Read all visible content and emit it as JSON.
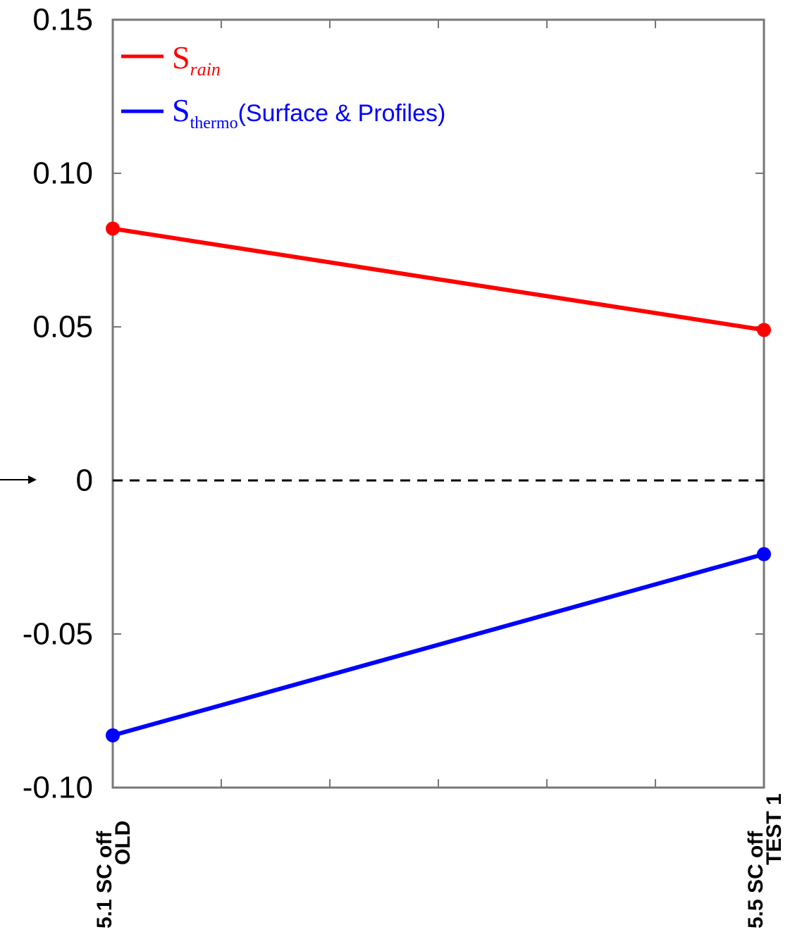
{
  "chart_data": {
    "type": "line",
    "categories": [
      {
        "line1": "5.1 SC off",
        "line2": "OLD"
      },
      {
        "line1": "5.5 SC off",
        "line2": "TEST 1"
      }
    ],
    "series": [
      {
        "name_main": "S",
        "name_sub": "rain",
        "name_suffix": "",
        "color": "#ff0000",
        "values": [
          0.082,
          0.049
        ]
      },
      {
        "name_main": "S",
        "name_sub": "thermo",
        "name_suffix": "(Surface & Profiles)",
        "color": "#0000ff",
        "values": [
          -0.083,
          -0.024
        ]
      }
    ],
    "ylim": [
      -0.1,
      0.15
    ],
    "yticks": [
      "0.15",
      "0.10",
      "0.05",
      "0",
      "-0.05",
      "-0.10"
    ],
    "zero_line": "dashed",
    "grid": false,
    "legend_position": "top-left"
  }
}
